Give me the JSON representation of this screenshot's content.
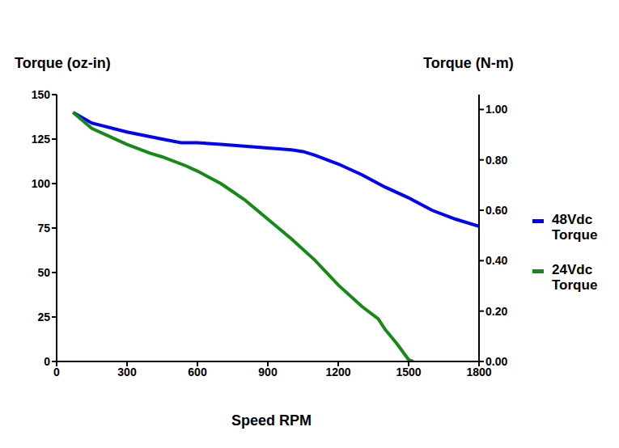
{
  "chart_data": {
    "type": "line",
    "x_label": "Speed RPM",
    "y_label": "Torque (oz-in)",
    "y2_label": "Torque (N-m)",
    "xlim": [
      0,
      1800
    ],
    "xticks": [
      0,
      300,
      600,
      900,
      1200,
      1500,
      1800
    ],
    "ylim": [
      0,
      150
    ],
    "yticks": [
      0,
      25,
      50,
      75,
      100,
      125,
      150
    ],
    "y2lim": [
      0,
      1.059
    ],
    "y2ticks": [
      {
        "value": 0,
        "label": "0.00"
      },
      {
        "value": 0.2,
        "label": "0.20"
      },
      {
        "value": 0.4,
        "label": "0.40"
      },
      {
        "value": 0.6,
        "label": "0.60"
      },
      {
        "value": 0.8,
        "label": "0.80"
      },
      {
        "value": 1,
        "label": "1.00"
      }
    ],
    "grid": false,
    "legend": "right",
    "series": [
      {
        "name": "48Vdc Torque",
        "color": "#0000ff",
        "x": [
          70,
          150,
          300,
          450,
          530,
          600,
          700,
          800,
          900,
          1000,
          1050,
          1100,
          1200,
          1300,
          1400,
          1500,
          1600,
          1700,
          1800
        ],
        "values": [
          140,
          134,
          129,
          125,
          123,
          123,
          122,
          121,
          120,
          119,
          118,
          116,
          111,
          105,
          98,
          92,
          85,
          80,
          76
        ]
      },
      {
        "name": "24Vdc Torque",
        "color": "#168a16",
        "x": [
          70,
          150,
          300,
          400,
          450,
          550,
          600,
          700,
          800,
          900,
          1000,
          1100,
          1200,
          1300,
          1370,
          1400,
          1450,
          1500,
          1520
        ],
        "values": [
          140,
          131,
          122,
          117,
          115,
          110,
          107,
          100,
          91,
          80,
          69,
          57,
          43,
          31,
          24,
          18,
          10,
          1,
          0
        ]
      }
    ]
  }
}
